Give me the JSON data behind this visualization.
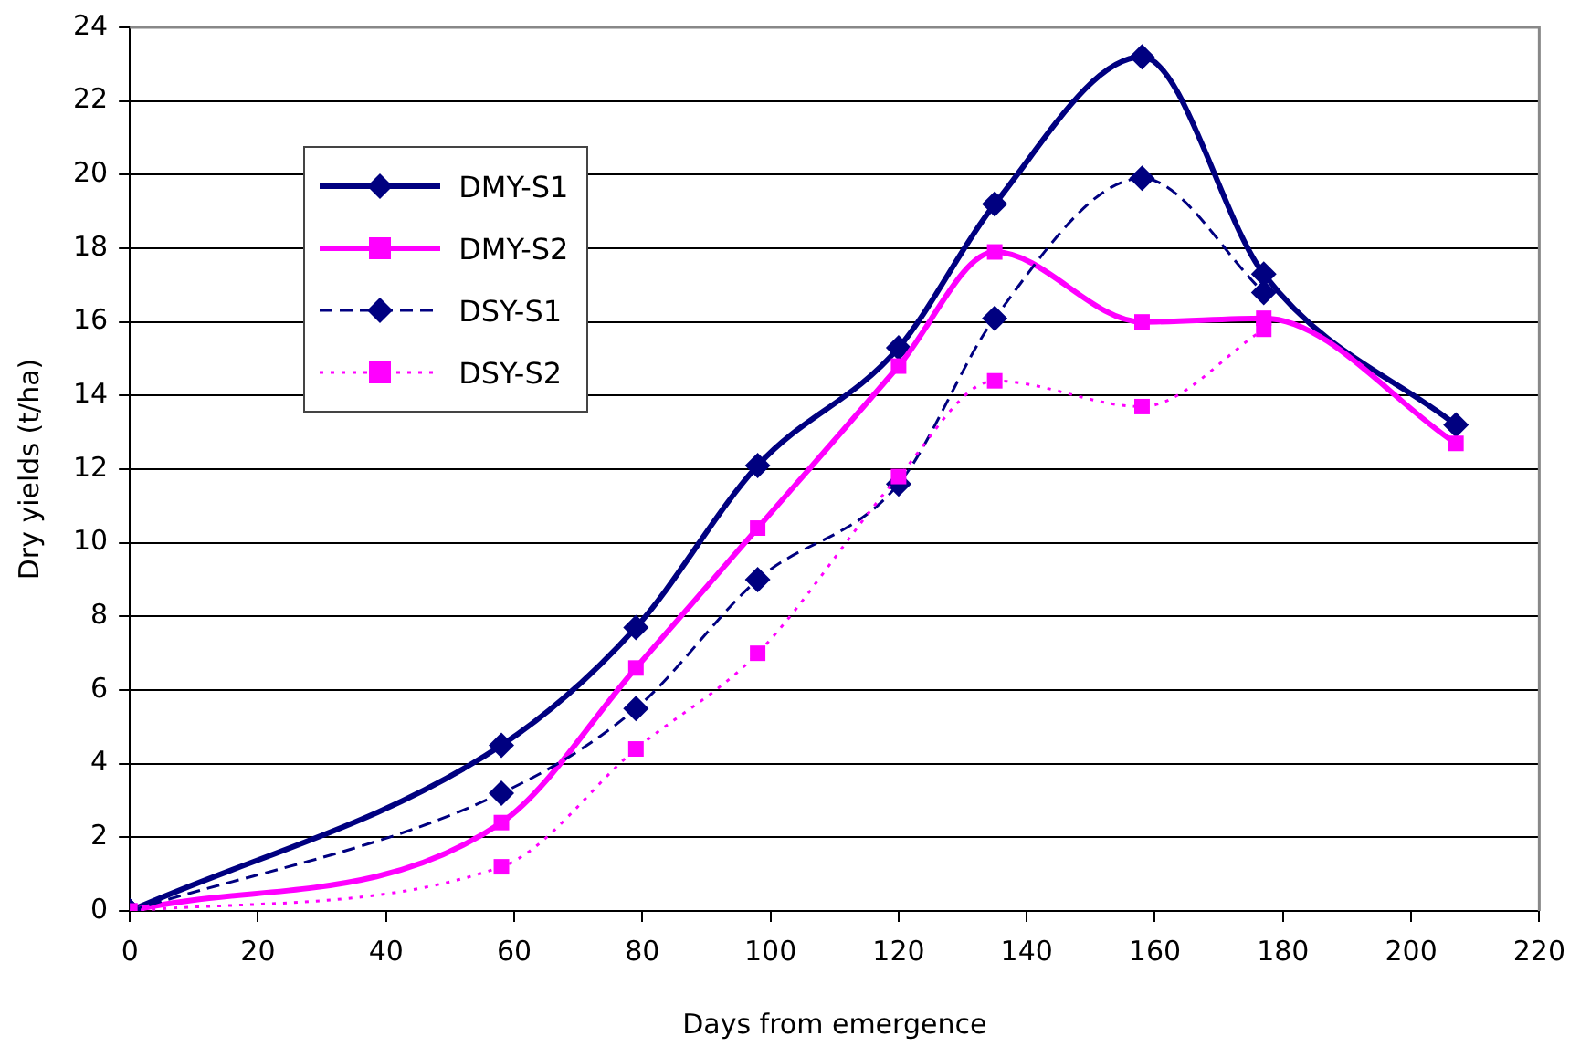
{
  "chart_data": {
    "type": "line",
    "xlabel": "Days from emergence",
    "ylabel": "Dry yields (t/ha)",
    "x": [
      0,
      58,
      79,
      98,
      120,
      135,
      158,
      177,
      207
    ],
    "series": [
      {
        "name": "DMY-S1",
        "color": "#000080",
        "marker": "diamond",
        "line_style": "solid",
        "values": [
          0,
          4.5,
          7.7,
          12.1,
          15.3,
          19.2,
          23.2,
          17.3,
          13.2
        ]
      },
      {
        "name": "DMY-S2",
        "color": "#ff00ff",
        "marker": "square",
        "line_style": "solid",
        "values": [
          0,
          2.4,
          6.6,
          10.4,
          14.8,
          17.9,
          16.0,
          16.1,
          12.7
        ]
      },
      {
        "name": "DSY-S1",
        "color": "#000080",
        "marker": "diamond",
        "line_style": "dashed",
        "values": [
          0,
          3.2,
          5.5,
          9.0,
          11.6,
          16.1,
          19.9,
          16.8,
          null
        ]
      },
      {
        "name": "DSY-S2",
        "color": "#ff00ff",
        "marker": "square",
        "line_style": "dotted",
        "values": [
          0,
          1.2,
          4.4,
          7.0,
          11.8,
          14.4,
          13.7,
          15.8,
          null
        ]
      }
    ],
    "xlim": [
      0,
      220
    ],
    "xticks": [
      0,
      20,
      40,
      60,
      80,
      100,
      120,
      140,
      160,
      180,
      200,
      220
    ],
    "ylim": [
      0,
      24
    ],
    "yticks": [
      0,
      2,
      4,
      6,
      8,
      10,
      12,
      14,
      16,
      18,
      20,
      22,
      24
    ],
    "grid": "y",
    "legend": "top left"
  }
}
